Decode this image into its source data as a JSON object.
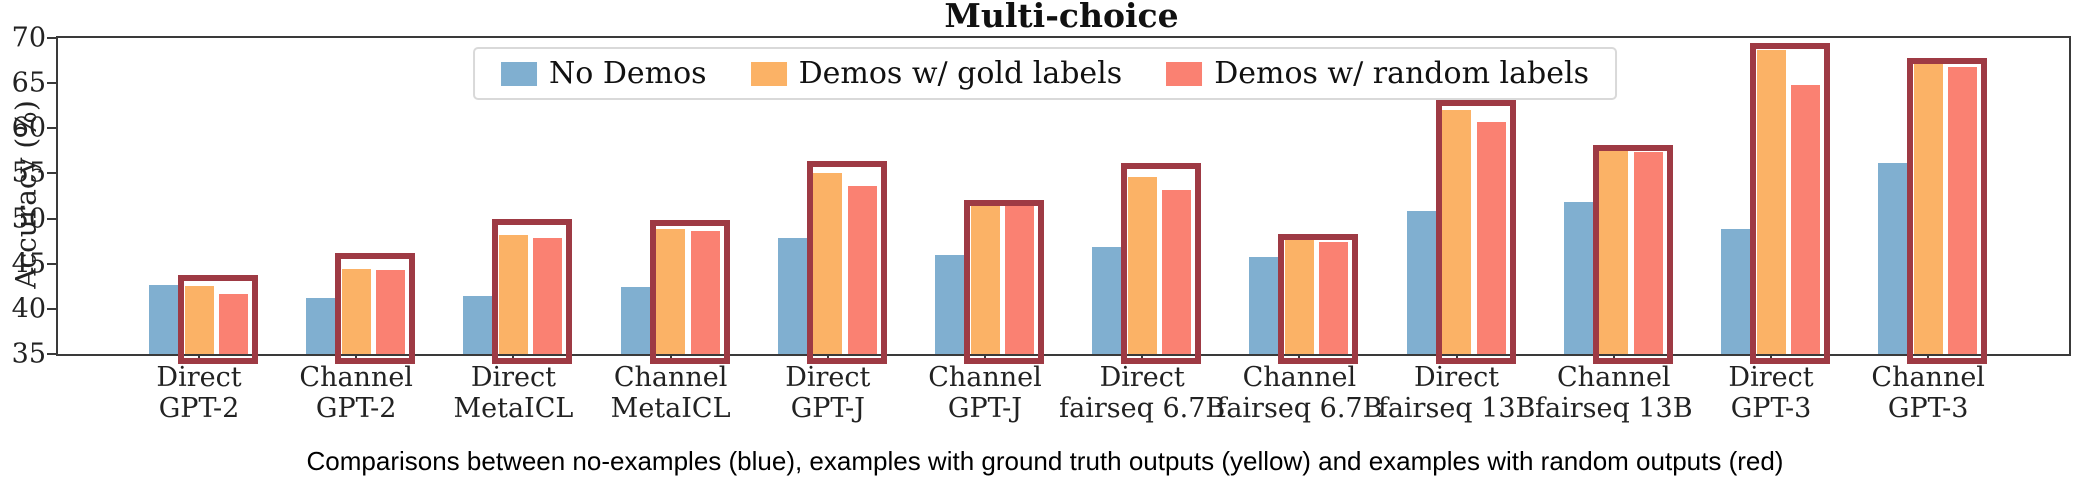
{
  "title": "Multi-choice",
  "caption": "Comparisons between no-examples (blue), examples with ground truth outputs (yellow) and examples with random outputs (red)",
  "chart_data": {
    "type": "bar",
    "title": "Multi-choice",
    "xlabel": "",
    "ylabel": "Accuracy (%)",
    "ylim": [
      35,
      70
    ],
    "yticks": [
      35,
      40,
      45,
      50,
      55,
      60,
      65,
      70
    ],
    "grid": false,
    "legend_position": "upper center",
    "categories": [
      [
        "Direct",
        "GPT-2"
      ],
      [
        "Channel",
        "GPT-2"
      ],
      [
        "Direct",
        "MetaICL"
      ],
      [
        "Channel",
        "MetaICL"
      ],
      [
        "Direct",
        "GPT-J"
      ],
      [
        "Channel",
        "GPT-J"
      ],
      [
        "Direct",
        "fairseq 6.7B"
      ],
      [
        "Channel",
        "fairseq 6.7B"
      ],
      [
        "Direct",
        "fairseq 13B"
      ],
      [
        "Channel",
        "fairseq 13B"
      ],
      [
        "Direct",
        "GPT-3"
      ],
      [
        "Channel",
        "GPT-3"
      ]
    ],
    "series": [
      {
        "name": "No Demos",
        "color": "#80AFD0",
        "values": [
          42.6,
          41.2,
          41.4,
          42.4,
          47.8,
          46.0,
          46.8,
          45.7,
          50.8,
          51.8,
          48.9,
          56.1
        ]
      },
      {
        "name": "Demos w/ gold labels",
        "color": "#FBB266",
        "values": [
          42.5,
          44.4,
          48.2,
          48.8,
          55.1,
          51.8,
          54.6,
          48.0,
          62.0,
          57.8,
          68.7,
          67.2
        ]
      },
      {
        "name": "Demos w/ random labels",
        "color": "#FA8172",
        "values": [
          41.6,
          44.3,
          47.8,
          48.6,
          53.6,
          51.6,
          53.2,
          47.4,
          60.7,
          57.4,
          64.8,
          66.8
        ]
      }
    ],
    "highlight_boxes": {
      "color": "#9E3A44",
      "note": "dark red rectangle framing the gold+random bars of each group",
      "tops": [
        43.7,
        46.2,
        49.9,
        49.8,
        56.4,
        52.1,
        56.2,
        48.3,
        63.1,
        58.1,
        69.4,
        67.8
      ]
    }
  }
}
